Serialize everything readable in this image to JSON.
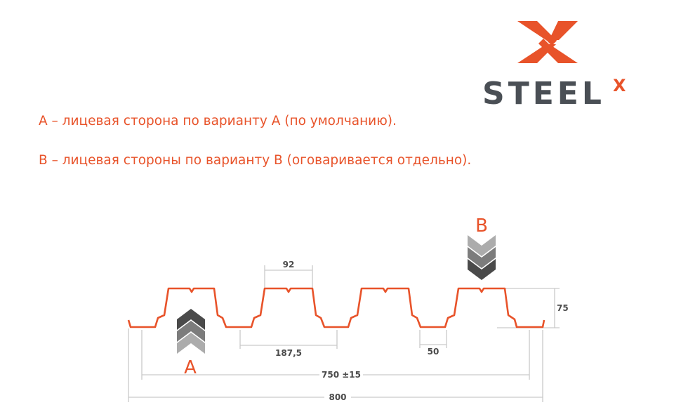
{
  "logo": {
    "text": "STEEL",
    "superscript": "X",
    "brand_color": "#e8532a",
    "text_color": "#4a4f55"
  },
  "notes": [
    "А – лицевая сторона по варианту А (по умолчанию).",
    "В – лицевая стороны по варианту В (оговаривается отдельно)."
  ],
  "diagram": {
    "profile_color": "#e8532a",
    "labels": {
      "a": "A",
      "b": "B"
    },
    "dimensions": {
      "rib_top": "92",
      "pitch": "187,5",
      "bottom": "50",
      "height": "75",
      "working_width": "750 ±15",
      "total_width": "800"
    }
  }
}
